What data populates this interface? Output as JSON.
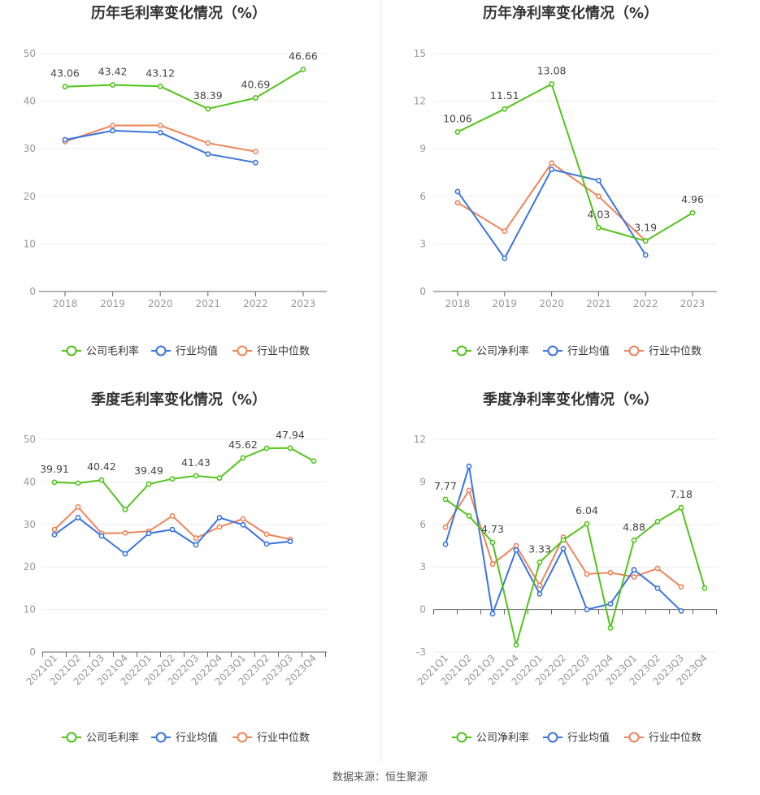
{
  "source_text": "数据来源：恒生聚源",
  "colors": {
    "company": "#52c41a",
    "avg": "#3b75e0",
    "median": "#f0845a",
    "axis": "#999999",
    "grid": "#eeeeee"
  },
  "chart_data": [
    {
      "type": "line",
      "title": "历年毛利率变化情况（%）",
      "categories": [
        "2018",
        "2019",
        "2020",
        "2021",
        "2022",
        "2023"
      ],
      "ylim": [
        0,
        50
      ],
      "yticks": [
        0,
        10,
        20,
        30,
        40,
        50
      ],
      "grid": true,
      "legend_position": "bottom",
      "series": [
        {
          "name": "公司毛利率",
          "role": "company",
          "values": [
            43.06,
            43.42,
            43.12,
            38.39,
            40.69,
            46.66
          ],
          "labeled": [
            0,
            1,
            2,
            3,
            4,
            5
          ]
        },
        {
          "name": "行业均值",
          "role": "avg",
          "values": [
            31.9,
            33.8,
            33.4,
            28.9,
            27.1,
            null
          ],
          "labeled": []
        },
        {
          "name": "行业中位数",
          "role": "median",
          "values": [
            31.5,
            34.9,
            34.9,
            31.2,
            29.4,
            null
          ],
          "labeled": []
        }
      ]
    },
    {
      "type": "line",
      "title": "历年净利率变化情况（%）",
      "categories": [
        "2018",
        "2019",
        "2020",
        "2021",
        "2022",
        "2023"
      ],
      "ylim": [
        0,
        15
      ],
      "yticks": [
        0,
        3,
        6,
        9,
        12,
        15
      ],
      "grid": true,
      "legend_position": "bottom",
      "series": [
        {
          "name": "公司净利率",
          "role": "company",
          "values": [
            10.06,
            11.51,
            13.08,
            4.03,
            3.19,
            4.96
          ],
          "labeled": [
            0,
            1,
            2,
            3,
            4,
            5
          ]
        },
        {
          "name": "行业均值",
          "role": "avg",
          "values": [
            6.3,
            2.1,
            7.7,
            7.0,
            2.3,
            null
          ],
          "labeled": []
        },
        {
          "name": "行业中位数",
          "role": "median",
          "values": [
            5.6,
            3.8,
            8.1,
            6.0,
            3.2,
            null
          ],
          "labeled": []
        }
      ]
    },
    {
      "type": "line",
      "title": "季度毛利率变化情况（%）",
      "categories": [
        "2021Q1",
        "2021Q2",
        "2021Q3",
        "2021Q4",
        "2022Q1",
        "2022Q2",
        "2022Q3",
        "2022Q4",
        "2023Q1",
        "2023Q2",
        "2023Q3",
        "2023Q4"
      ],
      "ylim": [
        0,
        50
      ],
      "yticks": [
        0,
        10,
        20,
        30,
        40,
        50
      ],
      "grid": true,
      "legend_position": "bottom",
      "series": [
        {
          "name": "公司毛利率",
          "role": "company",
          "values": [
            39.91,
            39.7,
            40.42,
            33.5,
            39.49,
            40.7,
            41.43,
            40.9,
            45.62,
            47.9,
            47.94,
            44.9
          ],
          "labeled": [
            0,
            2,
            4,
            6,
            8,
            10
          ]
        },
        {
          "name": "行业均值",
          "role": "avg",
          "values": [
            27.6,
            31.6,
            27.3,
            23.1,
            27.9,
            28.8,
            25.2,
            31.6,
            29.9,
            25.4,
            26.0,
            null
          ],
          "labeled": []
        },
        {
          "name": "行业中位数",
          "role": "median",
          "values": [
            28.8,
            34.1,
            27.9,
            28.0,
            28.4,
            32.0,
            26.8,
            29.4,
            31.3,
            27.7,
            26.5,
            null
          ],
          "labeled": []
        }
      ]
    },
    {
      "type": "line",
      "title": "季度净利率变化情况（%）",
      "categories": [
        "2021Q1",
        "2021Q2",
        "2021Q3",
        "2021Q4",
        "2022Q1",
        "2022Q2",
        "2022Q3",
        "2022Q4",
        "2023Q1",
        "2023Q2",
        "2023Q3",
        "2023Q4"
      ],
      "ylim": [
        -3,
        12
      ],
      "yticks": [
        -3,
        0,
        3,
        6,
        9,
        12
      ],
      "grid": true,
      "legend_position": "bottom",
      "series": [
        {
          "name": "公司净利率",
          "role": "company",
          "values": [
            7.77,
            6.6,
            4.73,
            -2.5,
            3.33,
            4.9,
            6.04,
            -1.3,
            4.88,
            6.2,
            7.18,
            1.5
          ],
          "labeled": [
            0,
            2,
            4,
            6,
            8,
            10
          ]
        },
        {
          "name": "行业均值",
          "role": "avg",
          "values": [
            4.6,
            10.1,
            -0.3,
            4.2,
            1.1,
            4.3,
            0.0,
            0.4,
            2.8,
            1.5,
            -0.1,
            null
          ],
          "labeled": []
        },
        {
          "name": "行业中位数",
          "role": "median",
          "values": [
            5.8,
            8.4,
            3.2,
            4.5,
            1.7,
            5.1,
            2.5,
            2.6,
            2.3,
            2.9,
            1.6,
            null
          ],
          "labeled": []
        }
      ]
    }
  ]
}
